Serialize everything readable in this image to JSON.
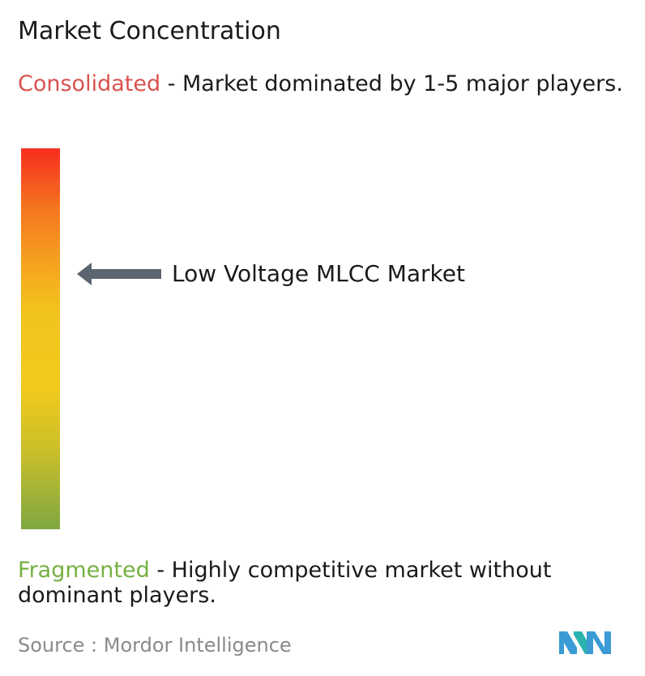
{
  "title": "Market Concentration",
  "consolidated": {
    "label": "Consolidated",
    "description": "- Market dominated by 1-5 major players.",
    "color": "#d9534f"
  },
  "fragmented": {
    "label": "Fragmented",
    "description": "- Highly competitive market without dominant players.",
    "color": "#76b041"
  },
  "chart_data": {
    "type": "gauge",
    "scale": {
      "top_label": "Consolidated",
      "bottom_label": "Fragmented",
      "gradient_colors": [
        "#f52e1f",
        "#f5a21f",
        "#f2ca1c",
        "#7ea842"
      ]
    },
    "marker": {
      "label": "Low Voltage MLCC Market",
      "position_fraction_from_top": 0.33
    }
  },
  "source": {
    "text": "Source :  Mordor Intelligence"
  },
  "logo": {
    "icon": "mordor-intelligence-logo",
    "colors": [
      "#3a9bd5",
      "#2bb3b0"
    ]
  }
}
